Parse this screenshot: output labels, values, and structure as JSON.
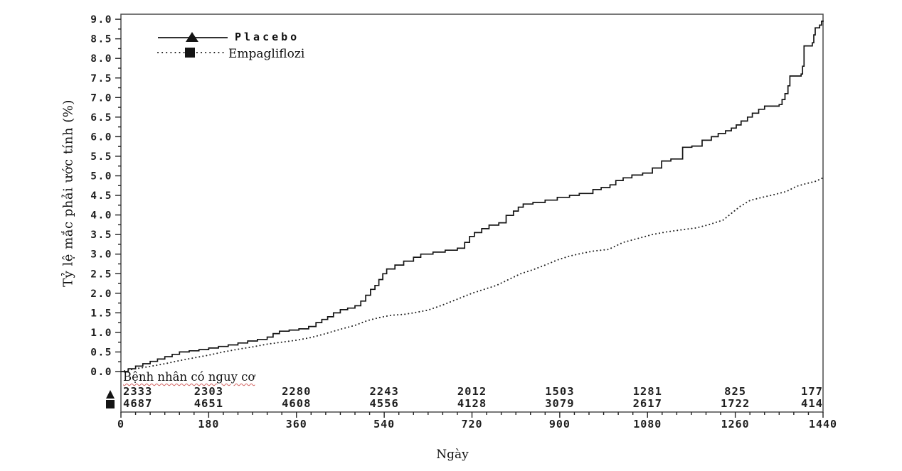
{
  "figure": {
    "y_axis_title": "Tỷ lệ mắc phải ước tính (%)",
    "x_axis_title": "Ngày",
    "risk_caption": "Bệnh nhân có nguy cơ",
    "colors": {
      "curve": "#141414",
      "frame": "#4a4a4a",
      "tick": "#222222",
      "label_text": "#1f1f1f",
      "squiggle": "#d2605e"
    }
  },
  "chart_data": {
    "type": "line",
    "subtype": "kaplan-meier-cumulative-incidence-steps",
    "title": "",
    "xlabel": "Ngày",
    "ylabel": "Tỷ lệ mắc phải ước tính (%)",
    "xlim": [
      0,
      1440
    ],
    "ylim": [
      0.0,
      9.0
    ],
    "grid": false,
    "legend_position": "top-left-inside",
    "x_major_ticks": [
      0,
      180,
      360,
      540,
      720,
      900,
      1080,
      1260,
      1440
    ],
    "x_minor_step": 30,
    "y_tick_labels": [
      "0.0",
      "0.5",
      "1.0",
      "1.5",
      "2.0",
      "2.5",
      "3.0",
      "3.5",
      "4.0",
      "4.5",
      "5.0",
      "5.5",
      "6.0",
      "6.5",
      "7.0",
      "7.5",
      "8.0",
      "8.5",
      "9.0"
    ],
    "y_minor_step": 0.25,
    "series": [
      {
        "name": "Placebo",
        "marker": "triangle",
        "line_style": "solid",
        "color": "#141414",
        "points": [
          [
            0,
            0
          ],
          [
            15,
            0.07
          ],
          [
            30,
            0.14
          ],
          [
            45,
            0.2
          ],
          [
            60,
            0.26
          ],
          [
            75,
            0.32
          ],
          [
            90,
            0.38
          ],
          [
            105,
            0.44
          ],
          [
            120,
            0.5
          ],
          [
            140,
            0.53
          ],
          [
            160,
            0.56
          ],
          [
            180,
            0.6
          ],
          [
            200,
            0.64
          ],
          [
            220,
            0.68
          ],
          [
            240,
            0.73
          ],
          [
            260,
            0.78
          ],
          [
            280,
            0.82
          ],
          [
            300,
            0.88
          ],
          [
            312,
            0.97
          ],
          [
            325,
            1.03
          ],
          [
            345,
            1.06
          ],
          [
            365,
            1.09
          ],
          [
            385,
            1.15
          ],
          [
            400,
            1.25
          ],
          [
            412,
            1.33
          ],
          [
            424,
            1.4
          ],
          [
            436,
            1.5
          ],
          [
            450,
            1.58
          ],
          [
            465,
            1.62
          ],
          [
            480,
            1.68
          ],
          [
            492,
            1.8
          ],
          [
            502,
            1.95
          ],
          [
            512,
            2.1
          ],
          [
            521,
            2.2
          ],
          [
            529,
            2.35
          ],
          [
            537,
            2.5
          ],
          [
            545,
            2.62
          ],
          [
            562,
            2.72
          ],
          [
            580,
            2.82
          ],
          [
            600,
            2.92
          ],
          [
            615,
            3.0
          ],
          [
            640,
            3.05
          ],
          [
            665,
            3.1
          ],
          [
            690,
            3.15
          ],
          [
            705,
            3.3
          ],
          [
            715,
            3.45
          ],
          [
            725,
            3.55
          ],
          [
            740,
            3.65
          ],
          [
            755,
            3.74
          ],
          [
            775,
            3.8
          ],
          [
            790,
            3.99
          ],
          [
            805,
            4.1
          ],
          [
            815,
            4.2
          ],
          [
            825,
            4.28
          ],
          [
            845,
            4.32
          ],
          [
            870,
            4.38
          ],
          [
            895,
            4.45
          ],
          [
            920,
            4.5
          ],
          [
            940,
            4.55
          ],
          [
            968,
            4.65
          ],
          [
            985,
            4.7
          ],
          [
            1003,
            4.77
          ],
          [
            1015,
            4.88
          ],
          [
            1030,
            4.95
          ],
          [
            1048,
            5.02
          ],
          [
            1070,
            5.07
          ],
          [
            1090,
            5.2
          ],
          [
            1109,
            5.38
          ],
          [
            1128,
            5.43
          ],
          [
            1152,
            5.73
          ],
          [
            1171,
            5.76
          ],
          [
            1192,
            5.91
          ],
          [
            1211,
            6.0
          ],
          [
            1225,
            6.08
          ],
          [
            1240,
            6.15
          ],
          [
            1252,
            6.22
          ],
          [
            1262,
            6.3
          ],
          [
            1272,
            6.4
          ],
          [
            1285,
            6.5
          ],
          [
            1295,
            6.6
          ],
          [
            1308,
            6.7
          ],
          [
            1320,
            6.78
          ],
          [
            1350,
            6.82
          ],
          [
            1356,
            6.95
          ],
          [
            1362,
            7.1
          ],
          [
            1368,
            7.3
          ],
          [
            1372,
            7.55
          ],
          [
            1395,
            7.6
          ],
          [
            1398,
            7.8
          ],
          [
            1401,
            8.32
          ],
          [
            1418,
            8.4
          ],
          [
            1421,
            8.6
          ],
          [
            1424,
            8.78
          ],
          [
            1433,
            8.85
          ],
          [
            1437,
            8.95
          ],
          [
            1440,
            8.97
          ]
        ]
      },
      {
        "name": "Empagliflozi",
        "marker": "square",
        "line_style": "dotted",
        "color": "#222222",
        "points": [
          [
            0,
            0
          ],
          [
            30,
            0.07
          ],
          [
            60,
            0.13
          ],
          [
            90,
            0.2
          ],
          [
            120,
            0.28
          ],
          [
            150,
            0.35
          ],
          [
            180,
            0.42
          ],
          [
            210,
            0.5
          ],
          [
            240,
            0.57
          ],
          [
            270,
            0.63
          ],
          [
            300,
            0.7
          ],
          [
            330,
            0.75
          ],
          [
            360,
            0.8
          ],
          [
            390,
            0.87
          ],
          [
            420,
            0.97
          ],
          [
            450,
            1.08
          ],
          [
            480,
            1.18
          ],
          [
            505,
            1.3
          ],
          [
            530,
            1.38
          ],
          [
            555,
            1.44
          ],
          [
            580,
            1.46
          ],
          [
            600,
            1.5
          ],
          [
            630,
            1.57
          ],
          [
            660,
            1.7
          ],
          [
            690,
            1.85
          ],
          [
            720,
            2.0
          ],
          [
            745,
            2.1
          ],
          [
            770,
            2.2
          ],
          [
            795,
            2.35
          ],
          [
            820,
            2.5
          ],
          [
            845,
            2.6
          ],
          [
            870,
            2.72
          ],
          [
            895,
            2.85
          ],
          [
            920,
            2.95
          ],
          [
            945,
            3.02
          ],
          [
            970,
            3.08
          ],
          [
            1000,
            3.12
          ],
          [
            1030,
            3.3
          ],
          [
            1060,
            3.4
          ],
          [
            1090,
            3.5
          ],
          [
            1120,
            3.57
          ],
          [
            1150,
            3.62
          ],
          [
            1180,
            3.67
          ],
          [
            1205,
            3.75
          ],
          [
            1235,
            3.87
          ],
          [
            1253,
            4.05
          ],
          [
            1270,
            4.22
          ],
          [
            1290,
            4.37
          ],
          [
            1315,
            4.45
          ],
          [
            1340,
            4.52
          ],
          [
            1365,
            4.6
          ],
          [
            1385,
            4.73
          ],
          [
            1405,
            4.8
          ],
          [
            1425,
            4.86
          ],
          [
            1440,
            4.95
          ]
        ]
      }
    ],
    "risk_table": {
      "caption": "Bệnh nhân có nguy cơ",
      "times": [
        0,
        180,
        360,
        540,
        720,
        900,
        1080,
        1260,
        1440
      ],
      "rows": [
        {
          "series": "Placebo",
          "marker": "triangle",
          "counts": [
            2333,
            2303,
            2280,
            2243,
            2012,
            1503,
            1281,
            825,
            177
          ]
        },
        {
          "series": "Empagliflozi",
          "marker": "square",
          "counts": [
            4687,
            4651,
            4608,
            4556,
            4128,
            3079,
            2617,
            1722,
            414
          ]
        }
      ]
    }
  }
}
